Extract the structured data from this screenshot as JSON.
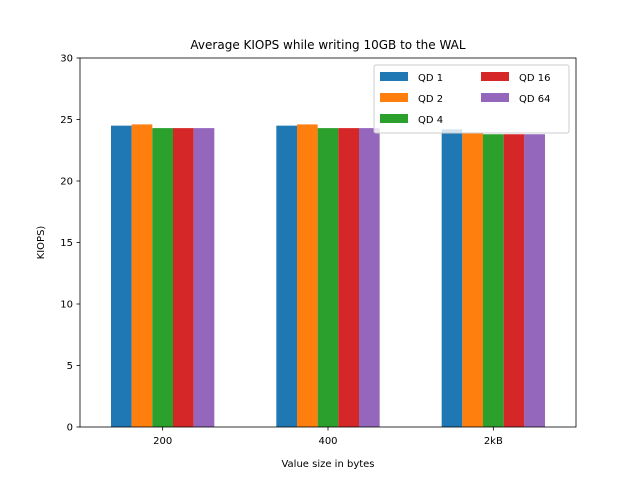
{
  "chart_data": {
    "type": "bar",
    "title": "Average KIOPS while writing 10GB to the WAL",
    "xlabel": "Value size in bytes",
    "ylabel": "KIOPS)",
    "categories": [
      "200",
      "400",
      "2kB"
    ],
    "ylim": [
      0,
      30
    ],
    "yticks": [
      0,
      5,
      10,
      15,
      20,
      25,
      30
    ],
    "grid": false,
    "legend": {
      "placement": "top-right",
      "columns": 2
    },
    "series": [
      {
        "name": "QD 1",
        "color": "#1f77b4",
        "values": [
          24.5,
          24.5,
          24.2
        ]
      },
      {
        "name": "QD 2",
        "color": "#ff7f0e",
        "values": [
          24.6,
          24.6,
          23.9
        ]
      },
      {
        "name": "QD 4",
        "color": "#2ca02c",
        "values": [
          24.3,
          24.3,
          23.8
        ]
      },
      {
        "name": "QD 16",
        "color": "#d62728",
        "values": [
          24.3,
          24.3,
          23.8
        ]
      },
      {
        "name": "QD 64",
        "color": "#9467bd",
        "values": [
          24.3,
          24.3,
          23.8
        ]
      }
    ]
  }
}
